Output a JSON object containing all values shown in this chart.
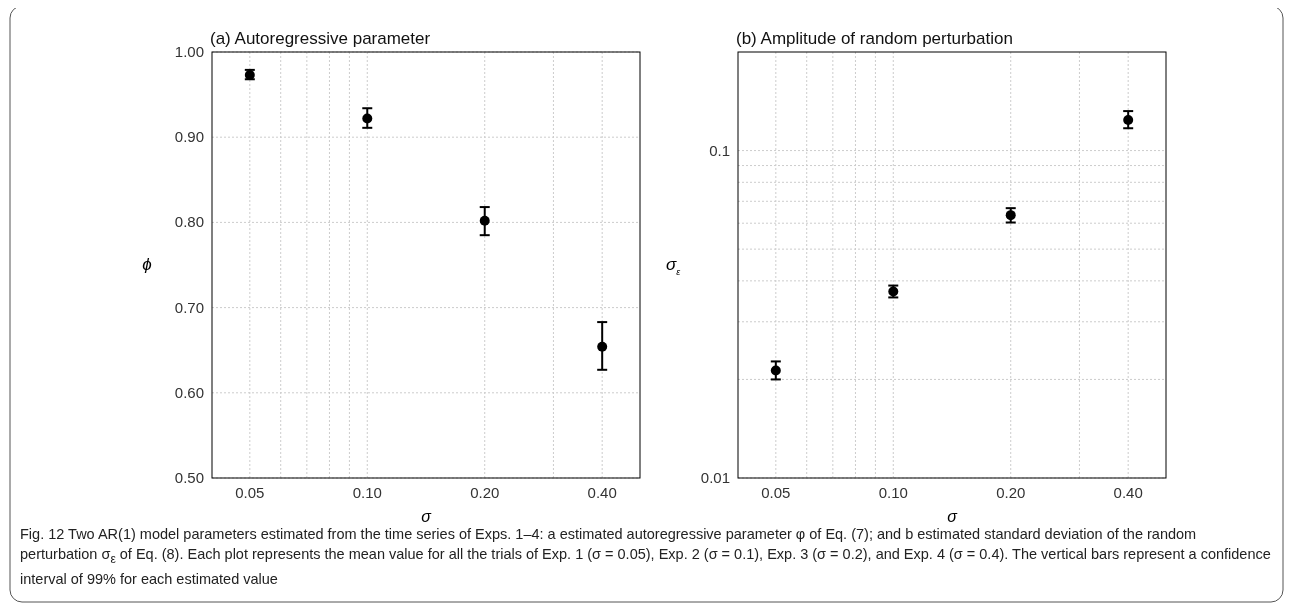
{
  "chart_data": [
    {
      "type": "scatter",
      "title": "(a) Autoregressive parameter",
      "xlabel": "σ",
      "ylabel": "ϕ",
      "log": "x",
      "grid": true,
      "marker": "circle",
      "x": [
        0.05,
        0.1,
        0.2,
        0.4
      ],
      "values": [
        0.973,
        0.922,
        0.802,
        0.654
      ],
      "errors": [
        [
          0.968,
          0.979
        ],
        [
          0.911,
          0.934
        ],
        [
          0.785,
          0.818
        ],
        [
          0.627,
          0.683
        ]
      ],
      "color": "#000000",
      "xlim": [
        0.04,
        0.5
      ],
      "xticks": [
        0.05,
        {
          "value": 0.06,
          "label": null
        },
        {
          "value": 0.07,
          "label": null
        },
        {
          "value": 0.08,
          "label": null
        },
        {
          "value": 0.09,
          "label": null
        },
        {
          "value": 0.1,
          "label": "0.10"
        },
        {
          "value": 0.2,
          "label": "0.20"
        },
        {
          "value": 0.3,
          "label": null
        },
        {
          "value": 0.4,
          "label": "0.40"
        }
      ],
      "ylim": [
        0.5,
        1
      ],
      "yticks": [
        {
          "value": 0.5,
          "label": "0.50"
        },
        {
          "value": 0.6,
          "label": "0.60"
        },
        {
          "value": 0.7,
          "label": "0.70"
        },
        {
          "value": 0.8,
          "label": "0.80"
        },
        {
          "value": 0.9,
          "label": "0.90"
        },
        {
          "value": 1,
          "label": "1.00"
        }
      ],
      "annotations": [
        "Fig. 12  Two AR(1) model parameters estimated from the time series of Exps. 1–4: a estimated autoregressive parameter φ of Eq. (7); and b estimated standard deviation of the random perturbation σ$_{ε}$ of Eq. (8). Each plot represents the mean value for all the trials of Exp. 1 (σ = 0.05), Exp. 2 (σ = 0.1), Exp. 3 (σ = 0.2), and Exp. 4 (σ = 0.4). The vertical bars represent a confidence interval of 99% for each estimated value"
      ]
    },
    {
      "type": "scatter",
      "title": "(b) Amplitude of random perturbation",
      "xlabel": "σ",
      "ylabel": "σ$_{ε}$",
      "log": "xy",
      "grid": true,
      "marker": "circle",
      "x": [
        0.05,
        0.1,
        0.2,
        0.4
      ],
      "values": [
        0.0213,
        0.0371,
        0.0635,
        0.124
      ],
      "errors": [
        [
          0.02,
          0.0227
        ],
        [
          0.0356,
          0.0387
        ],
        [
          0.0603,
          0.0667
        ],
        [
          0.117,
          0.132
        ]
      ],
      "color": "#000000",
      "xlim": [
        0.04,
        0.5
      ],
      "xticks": [
        0.05,
        {
          "value": 0.06,
          "label": null
        },
        {
          "value": 0.07,
          "label": null
        },
        {
          "value": 0.08,
          "label": null
        },
        {
          "value": 0.09,
          "label": null
        },
        {
          "value": 0.1,
          "label": "0.10"
        },
        {
          "value": 0.2,
          "label": "0.20"
        },
        {
          "value": 0.3,
          "label": null
        },
        {
          "value": 0.4,
          "label": "0.40"
        }
      ],
      "ylim": [
        0.01,
        0.2
      ],
      "yticks": [
        0.01,
        {
          "value": 0.02,
          "label": null
        },
        {
          "value": 0.03,
          "label": null
        },
        {
          "value": 0.04,
          "label": null
        },
        {
          "value": 0.05,
          "label": null
        },
        {
          "value": 0.06,
          "label": null
        },
        {
          "value": 0.07,
          "label": null
        },
        {
          "value": 0.08,
          "label": null
        },
        {
          "value": 0.09,
          "label": null
        },
        0.1
      ]
    }
  ]
}
